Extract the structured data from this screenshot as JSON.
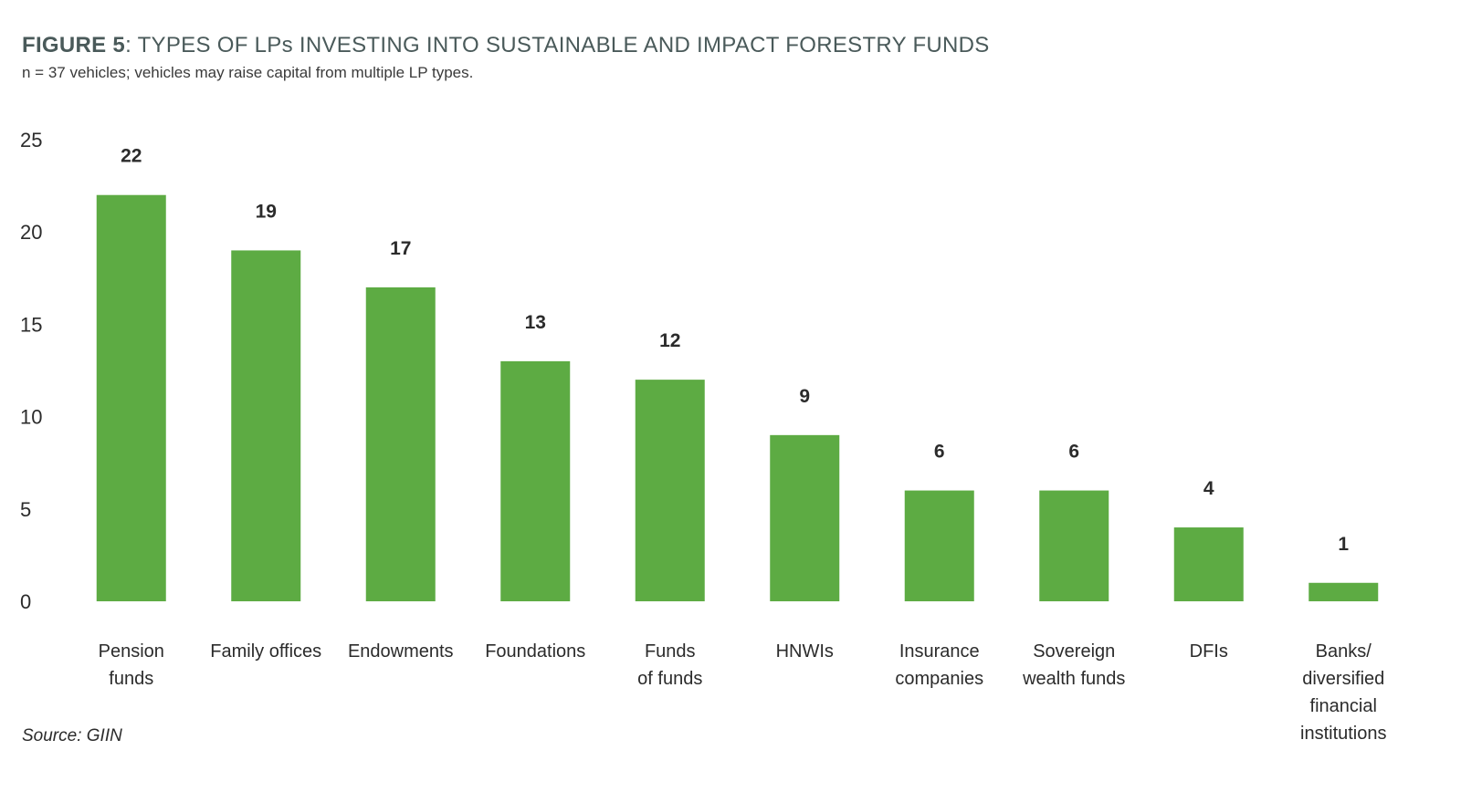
{
  "figure": {
    "title_lead": "FIGURE 5",
    "title_rest": ": TYPES OF LPs INVESTING INTO SUSTAINABLE AND IMPACT FORESTRY FUNDS",
    "subtitle": "n = 37 vehicles; vehicles may raise capital from multiple LP types."
  },
  "source": "Source: GIIN",
  "colors": {
    "bar": "#5dab43",
    "text": "#2b2b2b",
    "title": "#4a5a5a"
  },
  "chart_data": {
    "type": "bar",
    "title": "FIGURE 5: TYPES OF LPs INVESTING INTO SUSTAINABLE AND IMPACT FORESTRY FUNDS",
    "subtitle": "n = 37 vehicles; vehicles may raise capital from multiple LP types.",
    "categories": [
      [
        "Pension",
        "funds"
      ],
      [
        "Family offices"
      ],
      [
        "Endowments"
      ],
      [
        "Foundations"
      ],
      [
        "Funds",
        "of funds"
      ],
      [
        "HNWIs"
      ],
      [
        "Insurance",
        "companies"
      ],
      [
        "Sovereign",
        "wealth funds"
      ],
      [
        "DFIs"
      ],
      [
        "Banks/",
        "diversified",
        "financial",
        "institutions"
      ]
    ],
    "values": [
      22,
      19,
      17,
      13,
      12,
      9,
      6,
      6,
      4,
      1
    ],
    "ylim": [
      0,
      25
    ],
    "yticks": [
      0,
      5,
      10,
      15,
      20,
      25
    ],
    "xlabel": "",
    "ylabel": "",
    "grid": false,
    "legend": "none"
  }
}
